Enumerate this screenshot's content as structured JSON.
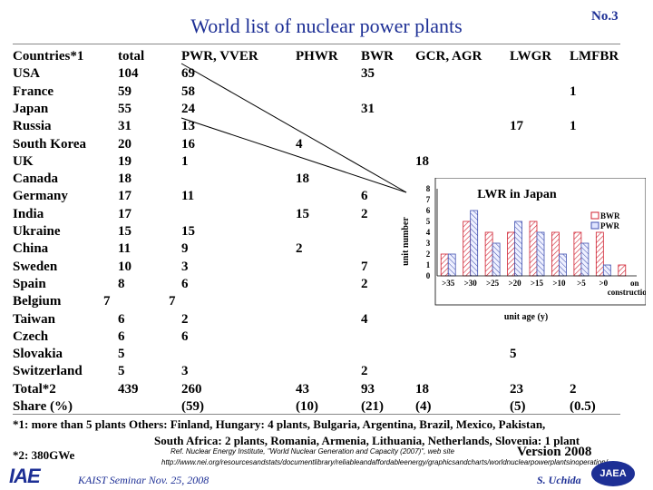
{
  "title": "World list of nuclear power plants",
  "slide_number": "No.3",
  "table": {
    "headers": [
      "Countries*1",
      "total",
      "PWR, VVER",
      "PHWR",
      "BWR",
      "GCR, AGR",
      "LWGR",
      "LMFBR"
    ],
    "rows": [
      {
        "country": "USA",
        "total": "104",
        "pwr": "69",
        "phwr": "",
        "bwr": "35",
        "gcr": "",
        "lwgr": "",
        "lmfbr": ""
      },
      {
        "country": "France",
        "total": "59",
        "pwr": "58",
        "phwr": "",
        "bwr": "",
        "gcr": "",
        "lwgr": "",
        "lmfbr": "1"
      },
      {
        "country": "Japan",
        "total": "55",
        "pwr": "24",
        "phwr": "",
        "bwr": "31",
        "gcr": "",
        "lwgr": "",
        "lmfbr": ""
      },
      {
        "country": "Russia",
        "total": "31",
        "pwr": "13",
        "phwr": "",
        "bwr": "",
        "gcr": "",
        "lwgr": "17",
        "lmfbr": "1"
      },
      {
        "country": "South Korea",
        "total": "20",
        "pwr": "16",
        "phwr": "4",
        "bwr": "",
        "gcr": "",
        "lwgr": "",
        "lmfbr": ""
      },
      {
        "country": "UK",
        "total": "19",
        "pwr": "1",
        "phwr": "",
        "bwr": "",
        "gcr": "18",
        "lwgr": "",
        "lmfbr": ""
      },
      {
        "country": "Canada",
        "total": "18",
        "pwr": "",
        "phwr": "18",
        "bwr": "",
        "gcr": "",
        "lwgr": "",
        "lmfbr": ""
      },
      {
        "country": "Germany",
        "total": "17",
        "pwr": "11",
        "phwr": "",
        "bwr": "6",
        "gcr": "",
        "lwgr": "",
        "lmfbr": ""
      },
      {
        "country": "India",
        "total": "17",
        "pwr": "",
        "phwr": "15",
        "bwr": "2",
        "gcr": "",
        "lwgr": "",
        "lmfbr": ""
      },
      {
        "country": "Ukraine",
        "total": "15",
        "pwr": "15",
        "phwr": "",
        "bwr": "",
        "gcr": "",
        "lwgr": "",
        "lmfbr": ""
      },
      {
        "country": "China",
        "total": "11",
        "pwr": "9",
        "phwr": "2",
        "bwr": "",
        "gcr": "",
        "lwgr": "",
        "lmfbr": ""
      },
      {
        "country": "Sweden",
        "total": "10",
        "pwr": "3",
        "phwr": "",
        "bwr": "7",
        "gcr": "",
        "lwgr": "",
        "lmfbr": ""
      },
      {
        "country": "Spain",
        "total": "8",
        "pwr": "6",
        "phwr": "",
        "bwr": "2",
        "gcr": "",
        "lwgr": "",
        "lmfbr": ""
      },
      {
        "country": "Belgium",
        "total": "7",
        "pwr": "7",
        "phwr": "",
        "bwr": "",
        "gcr": "",
        "lwgr": "",
        "lmfbr": ""
      },
      {
        "country": "Taiwan",
        "total": "6",
        "pwr": "2",
        "phwr": "",
        "bwr": "4",
        "gcr": "",
        "lwgr": "",
        "lmfbr": ""
      },
      {
        "country": "Czech",
        "total": "6",
        "pwr": "6",
        "phwr": "",
        "bwr": "",
        "gcr": "",
        "lwgr": "",
        "lmfbr": ""
      },
      {
        "country": "Slovakia",
        "total": "5",
        "pwr": "",
        "phwr": "",
        "bwr": "",
        "gcr": "",
        "lwgr": "5",
        "lmfbr": ""
      },
      {
        "country": "Switzerland",
        "total": "5",
        "pwr": "3",
        "phwr": "",
        "bwr": "2",
        "gcr": "",
        "lwgr": "",
        "lmfbr": ""
      },
      {
        "country": "Total*2",
        "total": "439",
        "pwr": "260",
        "phwr": "43",
        "bwr": "93",
        "gcr": "18",
        "lwgr": "23",
        "lmfbr": "2"
      },
      {
        "country": "Share (%)",
        "total": "",
        "pwr": "(59)",
        "phwr": "(10)",
        "bwr": "(21)",
        "gcr": "(4)",
        "lwgr": "(5)",
        "lmfbr": "(0.5)"
      }
    ]
  },
  "footnote1": "*1: more than 5 plants  Others:   Finland, Hungary: 4 plants, Bulgaria, Argentina, Brazil, Mexico, Pakistan,",
  "footnote1b": "South Africa: 2 plants, Romania, Armenia, Lithuania, Netherlands, Slovenia: 1 plant",
  "footnote2": "*2: 380GWe",
  "reference_line1": "Ref.  Nuclear Energy Institute, \"World Nuclear Generation and Capacity (2007)\", web site",
  "reference_line2": "http://www.nei.org/resourcesandstats/documentlibrary/reliableandaffordableenergy/graphicsandcharts/worldnuclearpowerplantsinoperation/",
  "version": "Version 2008",
  "seminar": "KAIST Seminar  Nov. 25, 2008",
  "author": "S. Uchida",
  "logo_left": "IAE",
  "logo_right": "JAEA",
  "colors": {
    "title": "#1d2f95",
    "bwr": "#d02030",
    "pwr": "#4050b0"
  },
  "chart_data": {
    "type": "bar",
    "title": "LWR in Japan",
    "categories": [
      ">35",
      ">30",
      ">25",
      ">20",
      ">15",
      ">10",
      ">5",
      ">0",
      "on construction"
    ],
    "series": [
      {
        "name": "BWR",
        "values": [
          2,
          5,
          4,
          4,
          5,
          4,
          4,
          4,
          1
        ]
      },
      {
        "name": "PWR",
        "values": [
          2,
          6,
          3,
          5,
          4,
          2,
          3,
          1,
          0
        ]
      }
    ],
    "xlabel": "unit age (y)",
    "ylabel": "unit number",
    "yticks": [
      "0",
      "1",
      "2",
      "3",
      "4",
      "5",
      "6",
      "7",
      "8"
    ],
    "ylim": [
      0,
      8
    ]
  }
}
